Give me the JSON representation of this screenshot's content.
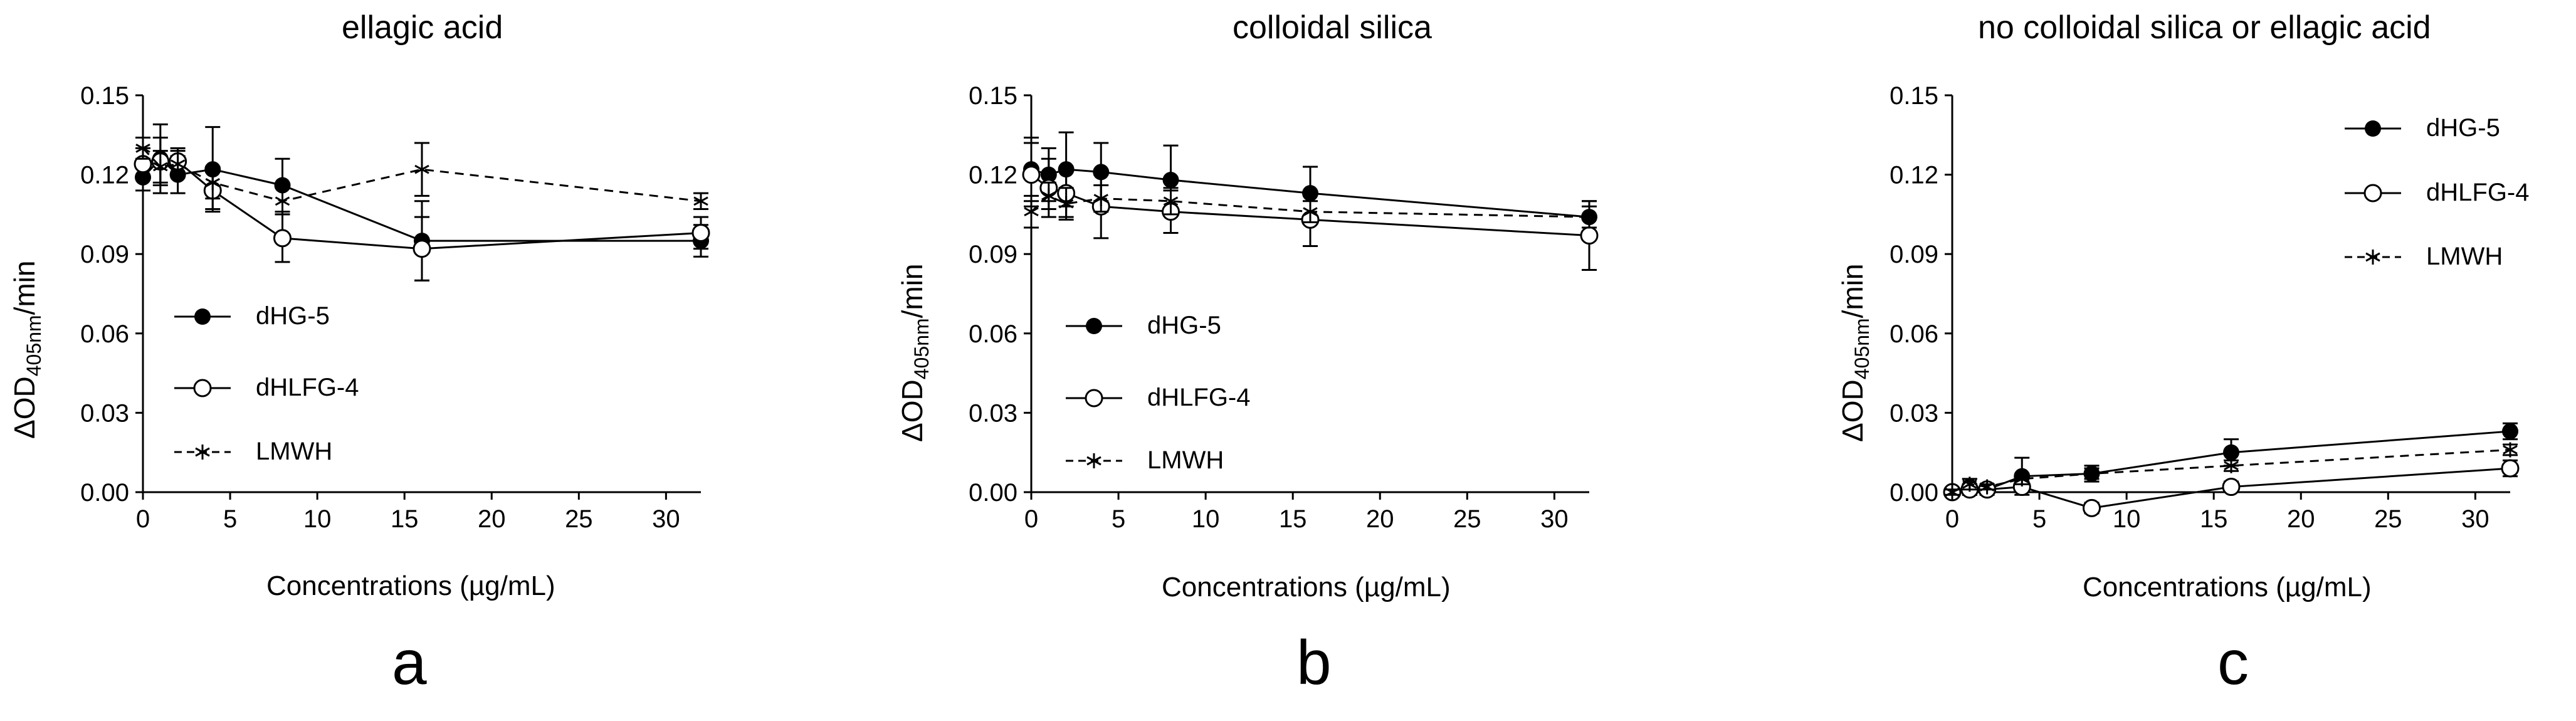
{
  "figure": {
    "panels": [
      {
        "title": "ellagic acid",
        "panel_label": "a",
        "xlabel": "Concentrations (µg/mL)",
        "ylabel_main": "ΔOD",
        "ylabel_sub": "405nm",
        "ylabel_tail": "/min",
        "legend_position": "lower-left"
      },
      {
        "title": "colloidal silica",
        "panel_label": "b",
        "xlabel": "Concentrations (µg/mL)",
        "ylabel_main": "ΔOD",
        "ylabel_sub": "405nm",
        "ylabel_tail": "/min",
        "legend_position": "lower-left"
      },
      {
        "title": "no colloidal silica or ellagic acid",
        "panel_label": "c",
        "xlabel": "Concentrations (µg/mL)",
        "ylabel_main": "ΔOD",
        "ylabel_sub": "405nm",
        "ylabel_tail": "/min",
        "legend_position": "upper-right"
      }
    ],
    "legend_labels": [
      "dHG-5",
      "dHLFG-4",
      "LMWH"
    ]
  },
  "colors": {
    "ink": "#000000",
    "background": "#ffffff"
  },
  "chart_data": [
    {
      "type": "line",
      "title": "ellagic acid",
      "xlabel": "Concentrations (µg/mL)",
      "ylabel": "ΔOD405nm/min",
      "xlim": [
        0,
        32
      ],
      "ylim": [
        0,
        0.15
      ],
      "xticks": [
        0,
        5,
        10,
        15,
        20,
        25,
        30
      ],
      "yticks": [
        0.0,
        0.03,
        0.06,
        0.09,
        0.12,
        0.15
      ],
      "x": [
        0,
        1,
        2,
        4,
        8,
        16,
        32
      ],
      "series": [
        {
          "name": "dHG-5",
          "marker": "filled-circle",
          "line": "solid",
          "values": [
            0.119,
            0.126,
            0.12,
            0.122,
            0.116,
            0.095,
            0.095
          ],
          "errors": [
            0.005,
            0.013,
            0.007,
            0.016,
            0.01,
            0.015,
            0.006
          ]
        },
        {
          "name": "dHLFG-4",
          "marker": "open-circle",
          "line": "solid",
          "values": [
            0.124,
            0.125,
            0.125,
            0.114,
            0.096,
            0.092,
            0.098
          ],
          "errors": [
            0.006,
            0.009,
            0.005,
            0.007,
            0.009,
            0.012,
            0.006
          ]
        },
        {
          "name": "LMWH",
          "marker": "asterisk",
          "line": "dashed",
          "values": [
            0.13,
            0.123,
            0.124,
            0.117,
            0.11,
            0.122,
            0.11
          ],
          "errors": [
            0.004,
            0.006,
            0.005,
            0.006,
            0.005,
            0.01,
            0.003
          ]
        }
      ]
    },
    {
      "type": "line",
      "title": "colloidal silica",
      "xlabel": "Concentrations (µg/mL)",
      "ylabel": "ΔOD405nm/min",
      "xlim": [
        0,
        32
      ],
      "ylim": [
        0,
        0.15
      ],
      "xticks": [
        0,
        5,
        10,
        15,
        20,
        25,
        30
      ],
      "yticks": [
        0.0,
        0.03,
        0.06,
        0.09,
        0.12,
        0.15
      ],
      "x": [
        0,
        1,
        2,
        4,
        8,
        16,
        32
      ],
      "series": [
        {
          "name": "dHG-5",
          "marker": "filled-circle",
          "line": "solid",
          "values": [
            0.122,
            0.12,
            0.122,
            0.121,
            0.118,
            0.113,
            0.104
          ],
          "errors": [
            0.012,
            0.01,
            0.014,
            0.011,
            0.013,
            0.01,
            0.006
          ]
        },
        {
          "name": "dHLFG-4",
          "marker": "open-circle",
          "line": "solid",
          "values": [
            0.12,
            0.115,
            0.113,
            0.108,
            0.106,
            0.103,
            0.097
          ],
          "errors": [
            0.012,
            0.011,
            0.009,
            0.012,
            0.008,
            0.01,
            0.013
          ]
        },
        {
          "name": "LMWH",
          "marker": "asterisk",
          "line": "dashed",
          "values": [
            0.106,
            0.112,
            0.109,
            0.111,
            0.11,
            0.106,
            0.104
          ],
          "errors": [
            0.006,
            0.005,
            0.006,
            0.005,
            0.005,
            0.004,
            0.004
          ]
        }
      ]
    },
    {
      "type": "line",
      "title": "no colloidal silica or ellagic acid",
      "xlabel": "Concentrations (µg/mL)",
      "ylabel": "ΔOD405nm/min",
      "xlim": [
        0,
        32
      ],
      "ylim": [
        0,
        0.15
      ],
      "xticks": [
        0,
        5,
        10,
        15,
        20,
        25,
        30
      ],
      "yticks": [
        0.0,
        0.03,
        0.06,
        0.09,
        0.12,
        0.15
      ],
      "x": [
        0,
        1,
        2,
        4,
        8,
        16,
        32
      ],
      "series": [
        {
          "name": "dHG-5",
          "marker": "filled-circle",
          "line": "solid",
          "values": [
            0.0,
            0.002,
            0.001,
            0.006,
            0.007,
            0.015,
            0.023
          ],
          "errors": [
            0.001,
            0.003,
            0.002,
            0.007,
            0.003,
            0.005,
            0.003
          ]
        },
        {
          "name": "dHLFG-4",
          "marker": "open-circle",
          "line": "solid",
          "values": [
            0.0,
            0.001,
            0.001,
            0.002,
            -0.006,
            0.002,
            0.009
          ],
          "errors": [
            0.001,
            0.002,
            0.001,
            0.002,
            0.002,
            0.002,
            0.003
          ]
        },
        {
          "name": "LMWH",
          "marker": "asterisk",
          "line": "dashed",
          "values": [
            0.0,
            0.003,
            0.002,
            0.005,
            0.007,
            0.01,
            0.016
          ],
          "errors": [
            0.001,
            0.002,
            0.001,
            0.002,
            0.002,
            0.002,
            0.002
          ]
        }
      ]
    }
  ]
}
